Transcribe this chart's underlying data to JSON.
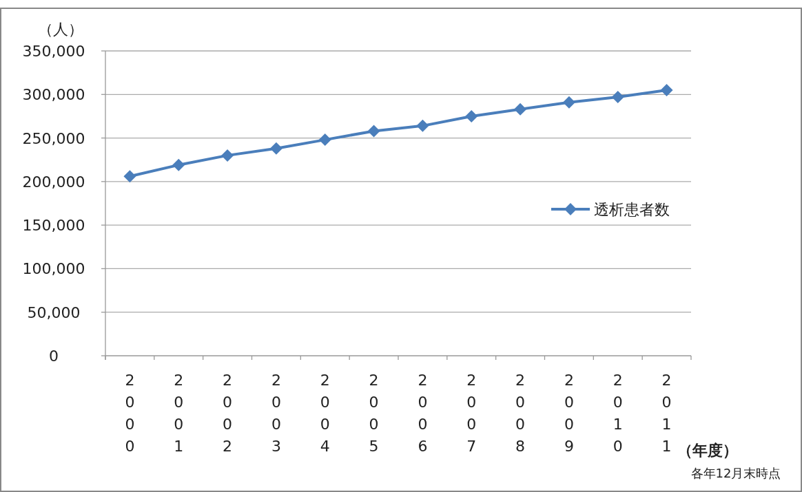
{
  "chart_data": {
    "type": "line",
    "ylabel": "（人）",
    "xlabel": "（年度）",
    "categories": [
      "2000",
      "2001",
      "2002",
      "2003",
      "2004",
      "2005",
      "2006",
      "2007",
      "2008",
      "2009",
      "2010",
      "2011"
    ],
    "series": [
      {
        "name": "透析患者数",
        "color": "#4a7ebb",
        "values": [
          206000,
          219000,
          230000,
          238000,
          248000,
          258000,
          264000,
          275000,
          283000,
          291000,
          297000,
          305000
        ]
      }
    ],
    "ylim": [
      0,
      350000
    ],
    "yticks": [
      {
        "value": 0,
        "label": "0"
      },
      {
        "value": 50000,
        "label": "50,000"
      },
      {
        "value": 100000,
        "label": "100,000"
      },
      {
        "value": 150000,
        "label": "150,000"
      },
      {
        "value": 200000,
        "label": "200,000"
      },
      {
        "value": 250000,
        "label": "250,000"
      },
      {
        "value": 300000,
        "label": "300,000"
      },
      {
        "value": 350000,
        "label": "350,000"
      }
    ],
    "grid": "y",
    "legend": "right",
    "marker": "diamond",
    "line_style": "solid",
    "annotations": [
      "各年12月末時点"
    ]
  }
}
